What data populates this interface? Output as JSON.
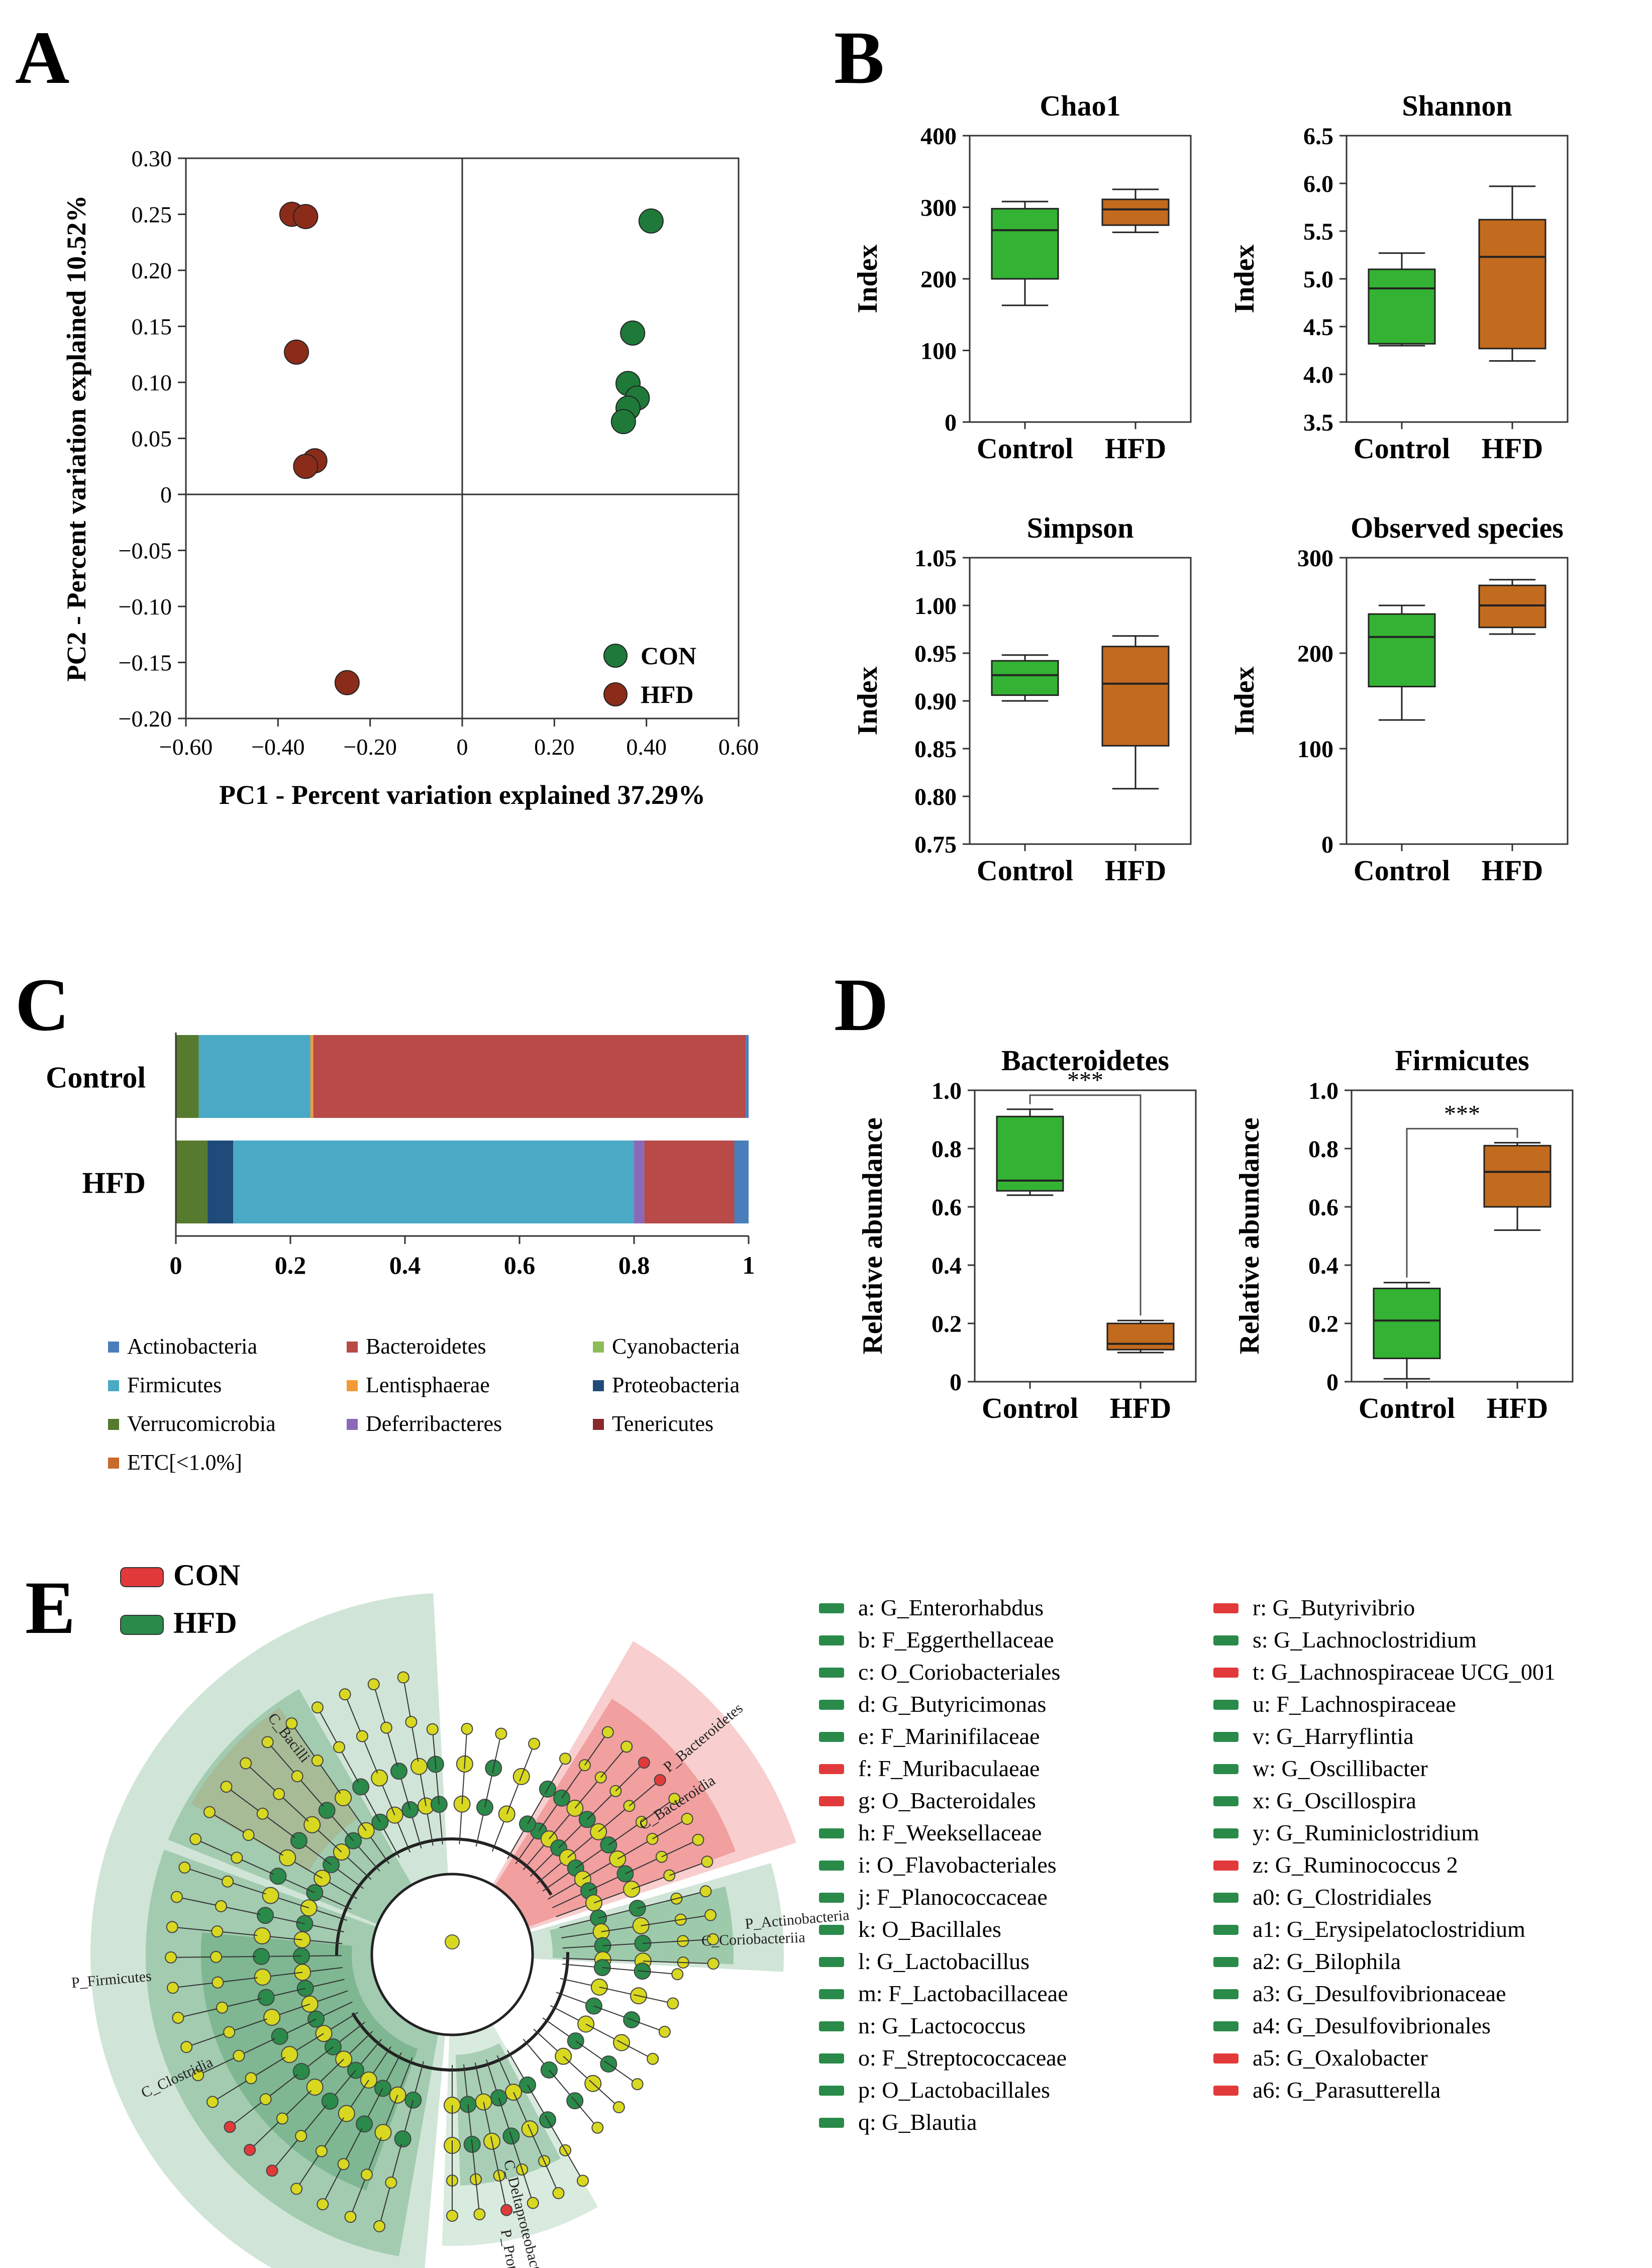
{
  "panels": {
    "A": {
      "letter": "A"
    },
    "B": {
      "letter": "B"
    },
    "C": {
      "letter": "C"
    },
    "D": {
      "letter": "D"
    },
    "E": {
      "letter": "E"
    }
  },
  "colors": {
    "con_green": "#1f7a3a",
    "hfd_brown": "#8b2c1a",
    "box_green": "#33b233",
    "box_orange": "#c26a1e",
    "actinobacteria": "#4a7ebb",
    "bacteroidetes": "#b84a48",
    "cyanobacteria": "#8cbb58",
    "firmicutes": "#4aa9c4",
    "lentisphaerae": "#f29a38",
    "proteobacteria": "#1f4b7a",
    "verrucomicrobia": "#567a2e",
    "deferribacteres": "#8a6ab8",
    "tenericutes": "#8a2a2a",
    "etc": "#c86a2a",
    "lefse_con": "#e23a3a",
    "lefse_hfd": "#2a8a4a",
    "node_yellow": "#d8d820"
  },
  "chart_data": [
    {
      "id": "A",
      "type": "scatter",
      "xlabel": "PC1 - Percent variation explained 37.29%",
      "ylabel": "PC2 - Percent variation explained 10.52%",
      "xlim": [
        -0.6,
        0.6
      ],
      "ylim": [
        -0.2,
        0.3
      ],
      "xticks": [
        "−0.60",
        "−0.40",
        "−0.20",
        "0",
        "0.20",
        "0.40",
        "0.60"
      ],
      "xtick_values": [
        -0.6,
        -0.4,
        -0.2,
        0,
        0.2,
        0.4,
        0.6
      ],
      "yticks": [
        "0.30",
        "0.25",
        "0.20",
        "0.15",
        "0.10",
        "0.05",
        "0",
        "−0.05",
        "−0.10",
        "−0.15",
        "−0.20"
      ],
      "ytick_values": [
        0.3,
        0.25,
        0.2,
        0.15,
        0.1,
        0.05,
        0,
        -0.05,
        -0.1,
        -0.15,
        -0.2
      ],
      "series": [
        {
          "name": "CON",
          "points": [
            [
              0.41,
              0.244
            ],
            [
              0.37,
              0.144
            ],
            [
              0.36,
              0.099
            ],
            [
              0.38,
              0.086
            ],
            [
              0.36,
              0.077
            ],
            [
              0.35,
              0.065
            ]
          ]
        },
        {
          "name": "HFD",
          "points": [
            [
              -0.37,
              0.25
            ],
            [
              -0.34,
              0.248
            ],
            [
              -0.36,
              0.127
            ],
            [
              -0.32,
              0.03
            ],
            [
              -0.34,
              0.025
            ],
            [
              -0.25,
              -0.168
            ]
          ]
        }
      ]
    },
    {
      "id": "B",
      "type": "box",
      "plots": [
        {
          "title": "Chao1",
          "ylabel": "Index",
          "ylim": [
            0,
            400
          ],
          "yticks": [
            "0",
            "100",
            "200",
            "300",
            "400"
          ],
          "ytick_values": [
            0,
            100,
            200,
            300,
            400
          ],
          "categories": [
            "Control",
            "HFD"
          ],
          "boxes": [
            {
              "min": 163,
              "q1": 200,
              "median": 268,
              "q3": 298,
              "max": 308
            },
            {
              "min": 265,
              "q1": 275,
              "median": 297,
              "q3": 311,
              "max": 325
            }
          ]
        },
        {
          "title": "Shannon",
          "ylabel": "Index",
          "ylim": [
            3.5,
            6.5
          ],
          "yticks": [
            "3.5",
            "4.0",
            "4.5",
            "5.0",
            "5.5",
            "6.0",
            "6.5"
          ],
          "ytick_values": [
            3.5,
            4.0,
            4.5,
            5.0,
            5.5,
            6.0,
            6.5
          ],
          "categories": [
            "Control",
            "HFD"
          ],
          "boxes": [
            {
              "min": 4.3,
              "q1": 4.32,
              "median": 4.9,
              "q3": 5.1,
              "max": 5.27
            },
            {
              "min": 4.14,
              "q1": 4.27,
              "median": 5.23,
              "q3": 5.62,
              "max": 5.97
            }
          ]
        },
        {
          "title": "Simpson",
          "ylabel": "Index",
          "ylim": [
            0.75,
            1.05
          ],
          "yticks": [
            "0.75",
            "0.80",
            "0.85",
            "0.90",
            "0.95",
            "1.00",
            "1.05"
          ],
          "ytick_values": [
            0.75,
            0.8,
            0.85,
            0.9,
            0.95,
            1.0,
            1.05
          ],
          "categories": [
            "Control",
            "HFD"
          ],
          "boxes": [
            {
              "min": 0.9,
              "q1": 0.906,
              "median": 0.927,
              "q3": 0.942,
              "max": 0.948
            },
            {
              "min": 0.808,
              "q1": 0.853,
              "median": 0.918,
              "q3": 0.957,
              "max": 0.968
            }
          ]
        },
        {
          "title": "Observed species",
          "ylabel": "Index",
          "ylim": [
            0,
            300
          ],
          "yticks": [
            "0",
            "100",
            "200",
            "300"
          ],
          "ytick_values": [
            0,
            100,
            200,
            300
          ],
          "categories": [
            "Control",
            "HFD"
          ],
          "boxes": [
            {
              "min": 130,
              "q1": 165,
              "median": 217,
              "q3": 241,
              "max": 250
            },
            {
              "min": 220,
              "q1": 227,
              "median": 250,
              "q3": 271,
              "max": 277
            }
          ]
        }
      ]
    },
    {
      "id": "C",
      "type": "bar",
      "categories": [
        "Control",
        "HFD"
      ],
      "xlim": [
        0,
        1
      ],
      "xticks": [
        "0",
        "0.2",
        "0.4",
        "0.6",
        "0.8",
        "1"
      ],
      "xtick_values": [
        0,
        0.2,
        0.4,
        0.6,
        0.8,
        1
      ],
      "series": [
        {
          "name": "Verrucomicrobia",
          "values": [
            0.04,
            0.055
          ]
        },
        {
          "name": "Proteobacteria",
          "values": [
            0.0,
            0.045
          ]
        },
        {
          "name": "Firmicutes",
          "values": [
            0.195,
            0.7
          ]
        },
        {
          "name": "Lentisphaerae",
          "values": [
            0.005,
            0.0
          ]
        },
        {
          "name": "Deferribacteres",
          "values": [
            0.0,
            0.018
          ]
        },
        {
          "name": "Bacteroidetes",
          "values": [
            0.755,
            0.157
          ]
        },
        {
          "name": "Actinobacteria",
          "values": [
            0.005,
            0.025
          ]
        }
      ],
      "legend": [
        [
          "Actinobacteria",
          "Bacteroidetes",
          "Cyanobacteria"
        ],
        [
          "Firmicutes",
          "Lentisphaerae",
          "Proteobacteria"
        ],
        [
          "Verrucomicrobia",
          "Deferribacteres",
          "Tenericutes"
        ],
        [
          "ETC[<1.0%]"
        ]
      ]
    },
    {
      "id": "D",
      "type": "box",
      "plots": [
        {
          "title": "Bacteroidetes",
          "ylabel": "Relative abundance",
          "ylim": [
            0,
            1
          ],
          "yticks": [
            "0",
            "0.2",
            "0.4",
            "0.6",
            "0.8",
            "1.0"
          ],
          "ytick_values": [
            0,
            0.2,
            0.4,
            0.6,
            0.8,
            1.0
          ],
          "categories": [
            "Control",
            "HFD"
          ],
          "signif": "***",
          "boxes": [
            {
              "min": 0.64,
              "q1": 0.655,
              "median": 0.69,
              "q3": 0.91,
              "max": 0.935
            },
            {
              "min": 0.1,
              "q1": 0.11,
              "median": 0.13,
              "q3": 0.2,
              "max": 0.21
            }
          ]
        },
        {
          "title": "Firmicutes",
          "ylabel": "Relative abundance",
          "ylim": [
            0,
            1
          ],
          "yticks": [
            "0",
            "0.2",
            "0.4",
            "0.6",
            "0.8",
            "1.0"
          ],
          "ytick_values": [
            0,
            0.2,
            0.4,
            0.6,
            0.8,
            1.0
          ],
          "categories": [
            "Control",
            "HFD"
          ],
          "signif": "***",
          "boxes": [
            {
              "min": 0.01,
              "q1": 0.08,
              "median": 0.21,
              "q3": 0.32,
              "max": 0.34
            },
            {
              "min": 0.52,
              "q1": 0.6,
              "median": 0.72,
              "q3": 0.81,
              "max": 0.82
            }
          ]
        }
      ]
    },
    {
      "id": "E",
      "type": "cladogram",
      "legend": [
        {
          "name": "CON",
          "color": "#e23a3a"
        },
        {
          "name": "HFD",
          "color": "#2a8a4a"
        }
      ],
      "arc_labels": [
        "P_Bacteroidetes",
        "C_Bacteroidia",
        "P_Actinobacteria",
        "C_Coriobacteriia",
        "C_Bacilli",
        "P_Firmicutes",
        "C_Clostridia",
        "C_Deltaproteobacteria",
        "P_Proteobacteria"
      ],
      "keys": [
        {
          "k": "a: G_Enterorhabdus",
          "g": "HFD"
        },
        {
          "k": "b: F_Eggerthellaceae",
          "g": "HFD"
        },
        {
          "k": "c: O_Coriobacteriales",
          "g": "HFD"
        },
        {
          "k": "d: G_Butyricimonas",
          "g": "HFD"
        },
        {
          "k": "e: F_Marinifilaceae",
          "g": "HFD"
        },
        {
          "k": "f: F_Muribaculaeae",
          "g": "CON"
        },
        {
          "k": "g: O_Bacteroidales",
          "g": "CON"
        },
        {
          "k": "h: F_Weeksellaceae",
          "g": "HFD"
        },
        {
          "k": "i: O_Flavobacteriales",
          "g": "HFD"
        },
        {
          "k": "j: F_Planococcaceae",
          "g": "HFD"
        },
        {
          "k": "k: O_Bacillales",
          "g": "HFD"
        },
        {
          "k": "l: G_Lactobacillus",
          "g": "HFD"
        },
        {
          "k": "m: F_Lactobacillaceae",
          "g": "HFD"
        },
        {
          "k": "n: G_Lactococcus",
          "g": "HFD"
        },
        {
          "k": "o: F_Streptococcaceae",
          "g": "HFD"
        },
        {
          "k": "p: O_Lactobacillales",
          "g": "HFD"
        },
        {
          "k": "q: G_Blautia",
          "g": "HFD"
        },
        {
          "k": "r: G_Butyrivibrio",
          "g": "CON"
        },
        {
          "k": "s: G_Lachnoclostridium",
          "g": "HFD"
        },
        {
          "k": "t: G_Lachnospiraceae UCG_001",
          "g": "CON"
        },
        {
          "k": "u: F_Lachnospiraceae",
          "g": "HFD"
        },
        {
          "k": "v: G_Harryflintia",
          "g": "HFD"
        },
        {
          "k": "w: G_Oscillibacter",
          "g": "HFD"
        },
        {
          "k": "x: G_Oscillospira",
          "g": "HFD"
        },
        {
          "k": "y: G_Ruminiclostridium",
          "g": "HFD"
        },
        {
          "k": "z: G_Ruminococcus 2",
          "g": "CON"
        },
        {
          "k": "a0: G_Clostridiales",
          "g": "HFD"
        },
        {
          "k": "a1: G_Erysipelatoclostridium",
          "g": "HFD"
        },
        {
          "k": "a2: G_Bilophila",
          "g": "HFD"
        },
        {
          "k": "a3: G_Desulfovibrionaceae",
          "g": "HFD"
        },
        {
          "k": "a4: G_Desulfovibrionales",
          "g": "HFD"
        },
        {
          "k": "a5: G_Oxalobacter",
          "g": "CON"
        },
        {
          "k": "a6: G_Parasutterella",
          "g": "CON"
        }
      ]
    }
  ]
}
